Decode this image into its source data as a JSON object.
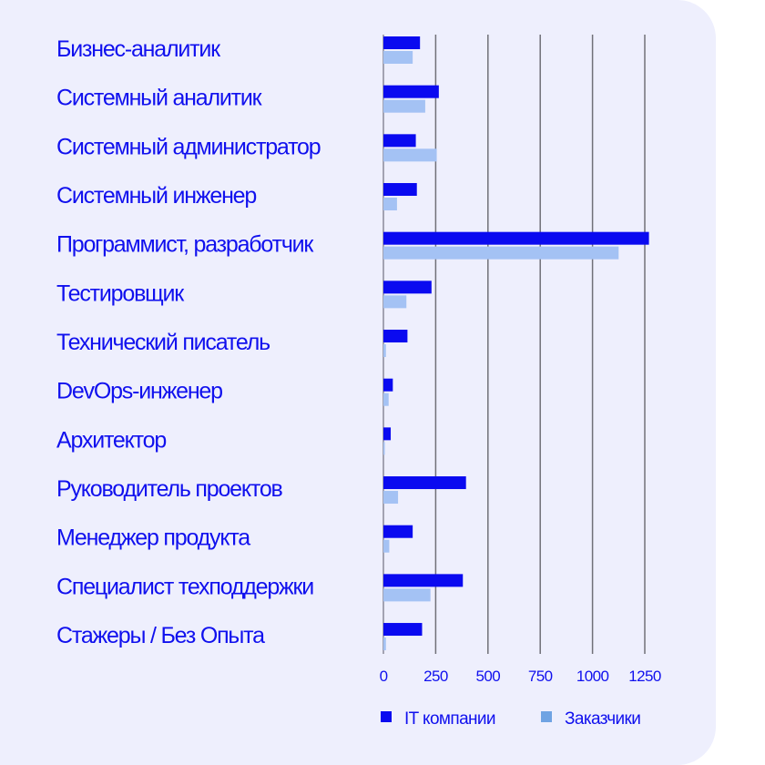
{
  "chart_data": {
    "type": "bar",
    "orientation": "horizontal",
    "categories": [
      "Бизнес-аналитик",
      "Системный аналитик",
      "Системный администратор",
      "Системный инженер",
      "Программист, разработчик",
      "Тестировщик",
      "Технический писатель",
      "DevOps-инженер",
      "Архитектор",
      "Руководитель проектов",
      "Менеджер продукта",
      "Специалист техподдержки",
      "Стажеры / Без Опыта"
    ],
    "series": [
      {
        "name": "IT компании",
        "color": "#0a0af0",
        "values": [
          175,
          265,
          155,
          160,
          1270,
          230,
          115,
          45,
          35,
          395,
          140,
          380,
          185
        ]
      },
      {
        "name": "Заказчики",
        "color": "#a4c2f4",
        "values": [
          140,
          200,
          255,
          65,
          1125,
          110,
          12,
          25,
          3,
          70,
          28,
          225,
          12
        ]
      }
    ],
    "xticks": [
      "0",
      "250",
      "500",
      "750",
      "1000",
      "1250"
    ],
    "xlim": [
      0,
      1250
    ],
    "grid": "vertical",
    "legend": "bottom",
    "legend_marker_colors": [
      "#0a0af0",
      "#6fa3e3"
    ]
  }
}
